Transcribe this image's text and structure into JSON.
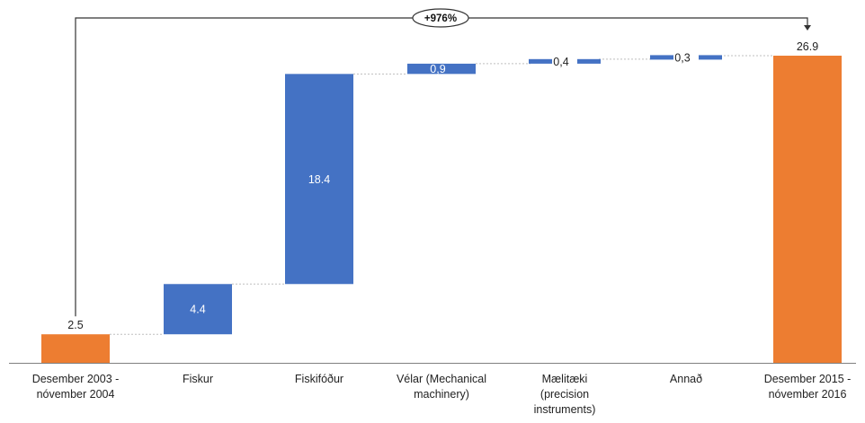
{
  "chart_data": {
    "type": "waterfall",
    "categories": [
      [
        "Desember 2003 -",
        "nóvember 2004"
      ],
      [
        "Fiskur"
      ],
      [
        "Fiskifóður"
      ],
      [
        "Vélar (Mechanical",
        "machinery)"
      ],
      [
        "Mælitæki",
        "(precision",
        "instruments)"
      ],
      [
        "Annað"
      ],
      [
        "Desember 2015 -",
        "nóvember 2016"
      ]
    ],
    "bars": [
      {
        "kind": "total",
        "start": 0,
        "value": 2.5,
        "label": "2.5"
      },
      {
        "kind": "step",
        "start": 2.5,
        "value": 4.4,
        "label": "4.4"
      },
      {
        "kind": "step",
        "start": 6.9,
        "value": 18.4,
        "label": "18.4"
      },
      {
        "kind": "step",
        "start": 25.3,
        "value": 0.9,
        "label": "0,9"
      },
      {
        "kind": "step",
        "start": 26.2,
        "value": 0.4,
        "label": "0,4"
      },
      {
        "kind": "step",
        "start": 26.6,
        "value": 0.3,
        "label": "0,3"
      },
      {
        "kind": "total",
        "start": 0,
        "value": 26.9,
        "label": "26.9"
      }
    ],
    "ylim": [
      0,
      26.9
    ],
    "grid": false,
    "annotation": {
      "text": "+976%",
      "from_category": 0,
      "to_category": 6
    },
    "colors": {
      "total": "#ED7D31",
      "step": "#4472C4",
      "connector": "#bfbfbf",
      "axis": "#7f7f7f",
      "arrow": "#333333"
    }
  }
}
